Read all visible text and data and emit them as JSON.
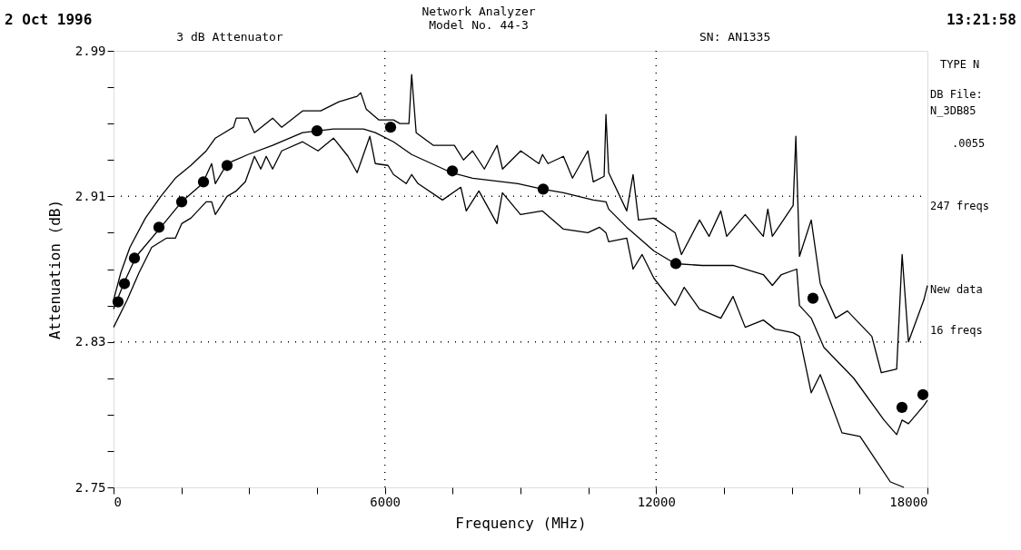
{
  "chart_data": {
    "type": "line",
    "title": "Network Analyzer",
    "subtitle": "Model No. 44-3",
    "xlabel": "Frequency (MHz)",
    "ylabel": "Attenuation (dB)",
    "xlim": [
      0,
      18000
    ],
    "ylim": [
      2.75,
      2.99
    ],
    "xticks": [
      0,
      {
        "value": 1500,
        "label": null
      },
      {
        "value": 3000,
        "label": null
      },
      {
        "value": 4500,
        "label": null
      },
      6000,
      {
        "value": 7500,
        "label": null
      },
      {
        "value": 9000,
        "label": null
      },
      {
        "value": 10500,
        "label": null
      },
      12000,
      {
        "value": 13500,
        "label": null
      },
      {
        "value": 15000,
        "label": null
      },
      {
        "value": 16500,
        "label": null
      },
      18000
    ],
    "yticks": [
      2.75,
      {
        "value": 2.77,
        "label": null
      },
      {
        "value": 2.79,
        "label": null
      },
      {
        "value": 2.81,
        "label": null
      },
      2.83,
      {
        "value": 2.85,
        "label": null
      },
      {
        "value": 2.87,
        "label": null
      },
      {
        "value": 2.89,
        "label": null
      },
      2.91,
      {
        "value": 2.93,
        "label": null
      },
      {
        "value": 2.95,
        "label": null
      },
      {
        "value": 2.97,
        "label": null
      },
      2.99
    ],
    "grid": true,
    "annotations": [
      "2 Oct 1996",
      "3 dB Attenuator",
      "SN: AN1335",
      "13:21:58",
      "TYPE N",
      "DB File:\nN_3DB85",
      ".0055",
      "247 freqs",
      "New data",
      "16 freqs"
    ],
    "series": [
      {
        "color": "#000000",
        "x": [
          0,
          161,
          362,
          704,
          1045,
          1367,
          1709,
          2050,
          2251,
          2653,
          2714,
          2975,
          3116,
          3518,
          3719,
          4181,
          4583,
          4985,
          5387,
          5467,
          5588,
          5870,
          6191,
          6332,
          6533,
          6593,
          6693,
          7075,
          7538,
          7739,
          7940,
          8201,
          8482,
          8603,
          9005,
          9407,
          9487,
          9608,
          9950,
          10150,
          10490,
          10610,
          10850,
          10890,
          10950,
          11350,
          11490,
          11610,
          11950,
          12420,
          12560,
          12960,
          13170,
          13430,
          13560,
          13970,
          14370,
          14470,
          14570,
          15030,
          15090,
          15170,
          15430,
          15630,
          15970,
          16230,
          16770,
          16980,
          17320,
          17440,
          17580,
          17920,
          18000
        ],
        "values": [
          2.853,
          2.868,
          2.882,
          2.898,
          2.91,
          2.92,
          2.927,
          2.935,
          2.942,
          2.948,
          2.953,
          2.953,
          2.945,
          2.953,
          2.948,
          2.957,
          2.957,
          2.962,
          2.965,
          2.967,
          2.958,
          2.952,
          2.952,
          2.95,
          2.95,
          2.977,
          2.945,
          2.938,
          2.938,
          2.93,
          2.935,
          2.925,
          2.938,
          2.925,
          2.935,
          2.928,
          2.933,
          2.928,
          2.932,
          2.92,
          2.935,
          2.918,
          2.921,
          2.955,
          2.923,
          2.902,
          2.922,
          2.897,
          2.898,
          2.89,
          2.878,
          2.897,
          2.888,
          2.902,
          2.888,
          2.9,
          2.888,
          2.903,
          2.888,
          2.905,
          2.943,
          2.877,
          2.897,
          2.862,
          2.843,
          2.847,
          2.833,
          2.813,
          2.815,
          2.878,
          2.83,
          2.853,
          2.861
        ]
      },
      {
        "color": "#000000",
        "x": [
          0,
          241,
          502,
          1045,
          1507,
          1969,
          2170,
          2251,
          2511,
          2975,
          3518,
          4181,
          4864,
          5528,
          5789,
          6191,
          6593,
          7476,
          7940,
          8945,
          9487,
          9950,
          10610,
          10890,
          10950,
          11350,
          11950,
          12420,
          13020,
          13700,
          14370,
          14570,
          14770,
          15110,
          15170,
          15430,
          15710,
          16370,
          17040,
          17320,
          17440,
          17580,
          17920,
          18000
        ],
        "values": [
          2.848,
          2.863,
          2.877,
          2.893,
          2.907,
          2.917,
          2.928,
          2.917,
          2.928,
          2.933,
          2.938,
          2.945,
          2.947,
          2.947,
          2.945,
          2.94,
          2.933,
          2.923,
          2.92,
          2.917,
          2.914,
          2.912,
          2.908,
          2.907,
          2.903,
          2.893,
          2.88,
          2.873,
          2.872,
          2.872,
          2.867,
          2.861,
          2.867,
          2.87,
          2.85,
          2.843,
          2.827,
          2.81,
          2.787,
          2.779,
          2.787,
          2.785,
          2.795,
          2.798
        ]
      },
      {
        "color": "#000000",
        "x": [
          0,
          301,
          563,
          844,
          1166,
          1367,
          1507,
          1709,
          2050,
          2170,
          2251,
          2511,
          2714,
          2915,
          3116,
          3256,
          3377,
          3518,
          3719,
          4181,
          4523,
          4864,
          5186,
          5387,
          5668,
          5789,
          6070,
          6191,
          6472,
          6593,
          6734,
          7275,
          7680,
          7800,
          8080,
          8480,
          8600,
          9000,
          9480,
          9950,
          10490,
          10750,
          10890,
          10950,
          11350,
          11490,
          11690,
          11950,
          12420,
          12620,
          12960,
          13430,
          13700,
          13970,
          14370,
          14630,
          15030,
          15170,
          15430,
          15630,
          16110,
          16510,
          17180,
          17480
        ],
        "values": [
          2.838,
          2.853,
          2.868,
          2.882,
          2.887,
          2.887,
          2.895,
          2.898,
          2.907,
          2.907,
          2.9,
          2.91,
          2.913,
          2.918,
          2.932,
          2.925,
          2.932,
          2.925,
          2.935,
          2.94,
          2.935,
          2.942,
          2.932,
          2.923,
          2.943,
          2.928,
          2.927,
          2.922,
          2.917,
          2.922,
          2.917,
          2.908,
          2.915,
          2.902,
          2.913,
          2.895,
          2.912,
          2.9,
          2.902,
          2.892,
          2.89,
          2.893,
          2.89,
          2.885,
          2.887,
          2.87,
          2.878,
          2.865,
          2.85,
          2.86,
          2.848,
          2.843,
          2.855,
          2.838,
          2.842,
          2.837,
          2.835,
          2.833,
          2.802,
          2.812,
          2.78,
          2.778,
          2.753,
          2.75
        ]
      },
      {
        "type": "scatter",
        "color": "#000000",
        "marker": "circle",
        "x": [
          100,
          241,
          462,
          1004,
          1507,
          1989,
          2511,
          4500,
          6127,
          7493,
          9502,
          12435,
          15468,
          17437,
          17900
        ],
        "values": [
          2.852,
          2.862,
          2.876,
          2.893,
          2.907,
          2.918,
          2.927,
          2.946,
          2.948,
          2.924,
          2.914,
          2.873,
          2.854,
          2.794,
          2.801
        ]
      }
    ]
  }
}
